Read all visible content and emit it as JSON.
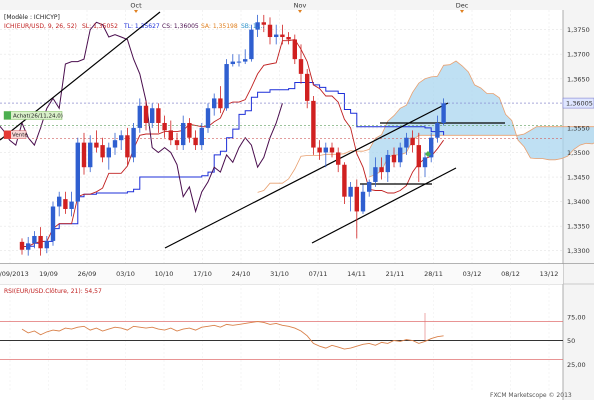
{
  "window": {
    "tab": "[Modèle : ICHICYP]",
    "watermark": "FXCM Marketscope © 2013"
  },
  "colors": {
    "bull": "#2f5fd0",
    "bear": "#d02020",
    "tenkan": "#c02020",
    "kijun": "#1d2fd8",
    "chikou": "#4a0e4e",
    "cloud": "#a9d6ef",
    "cloudEdge": "#e8a070",
    "rsi": "#d9814a",
    "trend": "#000000"
  },
  "chart_data": [
    {
      "type": "candlestick",
      "instrument": "EUR/USD",
      "legend": {
        "ichimoku": "ICH(EUR/USD, 9, 26, 52)",
        "sl": "SL: 1,35052",
        "tl": "TL: 1,35627",
        "cs": "CS: 1,36005",
        "sa": "SA: 1,35198",
        "sb": "SB: 1,..."
      },
      "price_labels": {
        "current": "1,36005",
        "achat": "Achat(26/11,24,0)",
        "vente": "Vente"
      },
      "y_ticks": [
        "1,3750",
        "1,3700",
        "1,3650",
        "1,3600",
        "1,3550",
        "1,3500",
        "1,3450",
        "1,3400",
        "1,3350",
        "1,3300"
      ],
      "x_ticks": [
        "04/09/2013",
        "19/09",
        "26/09",
        "03/10",
        "10/10",
        "17/10",
        "24/10",
        "31/10",
        "07/11",
        "14/11",
        "21/11",
        "28/11",
        "03/12",
        "08/12",
        "13/12"
      ],
      "months": [
        "Oct",
        "Nov",
        "Dec"
      ],
      "ylim": [
        1.3275,
        1.379
      ],
      "levels": [
        1.3528,
        1.3555
      ],
      "candles": [
        [
          1.3318,
          1.3325,
          1.3292,
          1.3302
        ],
        [
          1.3302,
          1.3328,
          1.329,
          1.3315
        ],
        [
          1.3315,
          1.334,
          1.3305,
          1.333
        ],
        [
          1.333,
          1.3348,
          1.329,
          1.3305
        ],
        [
          1.3305,
          1.333,
          1.3295,
          1.332
        ],
        [
          1.332,
          1.34,
          1.331,
          1.339
        ],
        [
          1.339,
          1.342,
          1.337,
          1.341
        ],
        [
          1.3405,
          1.342,
          1.3375,
          1.3385
        ],
        [
          1.3385,
          1.342,
          1.337,
          1.34
        ],
        [
          1.34,
          1.353,
          1.3395,
          1.352
        ],
        [
          1.352,
          1.354,
          1.3455,
          1.347
        ],
        [
          1.347,
          1.3535,
          1.346,
          1.352
        ],
        [
          1.352,
          1.3545,
          1.35,
          1.351
        ],
        [
          1.3515,
          1.353,
          1.348,
          1.349
        ],
        [
          1.349,
          1.352,
          1.3465,
          1.351
        ],
        [
          1.351,
          1.354,
          1.3495,
          1.3525
        ],
        [
          1.3525,
          1.3545,
          1.3505,
          1.3535
        ],
        [
          1.3535,
          1.355,
          1.3475,
          1.349
        ],
        [
          1.349,
          1.356,
          1.348,
          1.355
        ],
        [
          1.355,
          1.361,
          1.354,
          1.3595
        ],
        [
          1.3595,
          1.3605,
          1.3545,
          1.356
        ],
        [
          1.356,
          1.36,
          1.355,
          1.359
        ],
        [
          1.359,
          1.36,
          1.354,
          1.356
        ],
        [
          1.356,
          1.3575,
          1.353,
          1.3545
        ],
        [
          1.3545,
          1.3565,
          1.3515,
          1.3525
        ],
        [
          1.3525,
          1.354,
          1.3505,
          1.3515
        ],
        [
          1.3515,
          1.3575,
          1.3505,
          1.356
        ],
        [
          1.356,
          1.357,
          1.352,
          1.353
        ],
        [
          1.353,
          1.3545,
          1.3505,
          1.3515
        ],
        [
          1.3515,
          1.356,
          1.3505,
          1.355
        ],
        [
          1.355,
          1.36,
          1.354,
          1.359
        ],
        [
          1.359,
          1.362,
          1.3575,
          1.361
        ],
        [
          1.361,
          1.3635,
          1.358,
          1.359
        ],
        [
          1.359,
          1.369,
          1.3585,
          1.368
        ],
        [
          1.368,
          1.37,
          1.3675,
          1.3685
        ],
        [
          1.3685,
          1.37,
          1.3675,
          1.3685
        ],
        [
          1.3685,
          1.371,
          1.368,
          1.369
        ],
        [
          1.369,
          1.376,
          1.3685,
          1.375
        ],
        [
          1.375,
          1.378,
          1.3735,
          1.3765
        ],
        [
          1.3765,
          1.378,
          1.3745,
          1.376
        ],
        [
          1.376,
          1.3775,
          1.372,
          1.3735
        ],
        [
          1.3735,
          1.376,
          1.372,
          1.374
        ],
        [
          1.374,
          1.376,
          1.372,
          1.3735
        ],
        [
          1.3735,
          1.3745,
          1.372,
          1.373
        ],
        [
          1.373,
          1.374,
          1.368,
          1.369
        ],
        [
          1.369,
          1.372,
          1.364,
          1.366
        ],
        [
          1.366,
          1.367,
          1.359,
          1.3605
        ],
        [
          1.3605,
          1.3615,
          1.3495,
          1.351
        ],
        [
          1.351,
          1.3525,
          1.3485,
          1.35
        ],
        [
          1.35,
          1.352,
          1.347,
          1.351
        ],
        [
          1.351,
          1.352,
          1.349,
          1.35
        ],
        [
          1.35,
          1.351,
          1.346,
          1.3475
        ],
        [
          1.3475,
          1.348,
          1.3395,
          1.341
        ],
        [
          1.341,
          1.344,
          1.338,
          1.343
        ],
        [
          1.343,
          1.3445,
          1.3325,
          1.338
        ],
        [
          1.338,
          1.3435,
          1.3375,
          1.342
        ],
        [
          1.342,
          1.3445,
          1.341,
          1.344
        ],
        [
          1.344,
          1.349,
          1.343,
          1.347
        ],
        [
          1.347,
          1.349,
          1.3445,
          1.346
        ],
        [
          1.346,
          1.3505,
          1.344,
          1.3495
        ],
        [
          1.3495,
          1.351,
          1.347,
          1.348
        ],
        [
          1.348,
          1.352,
          1.347,
          1.351
        ],
        [
          1.351,
          1.354,
          1.3495,
          1.353
        ],
        [
          1.353,
          1.3545,
          1.35,
          1.3515
        ],
        [
          1.3515,
          1.354,
          1.344,
          1.347
        ],
        [
          1.347,
          1.35,
          1.345,
          1.349
        ],
        [
          1.349,
          1.354,
          1.348,
          1.353
        ],
        [
          1.353,
          1.3575,
          1.352,
          1.356
        ],
        [
          1.356,
          1.361,
          1.3555,
          1.36
        ]
      ],
      "rsi": {
        "legend": "RSI(EUR/USD.Clôture, 21): 54,57",
        "y_ticks": [
          "75,00",
          "50",
          "25,00"
        ],
        "levels": [
          70,
          50,
          30
        ],
        "values": [
          62,
          58,
          60,
          56,
          59,
          61,
          60,
          63,
          62,
          64,
          65,
          61,
          63,
          60,
          62,
          64,
          63,
          61,
          65,
          64,
          63,
          64,
          62,
          61,
          63,
          60,
          62,
          63,
          61,
          64,
          65,
          66,
          64,
          67,
          66,
          67,
          68,
          69,
          70,
          69,
          67,
          68,
          66,
          65,
          63,
          60,
          55,
          47,
          44,
          42,
          45,
          43,
          41,
          42,
          44,
          46,
          47,
          45,
          48,
          47,
          50,
          49,
          51,
          50,
          47,
          49,
          52,
          54,
          55
        ]
      }
    }
  ]
}
